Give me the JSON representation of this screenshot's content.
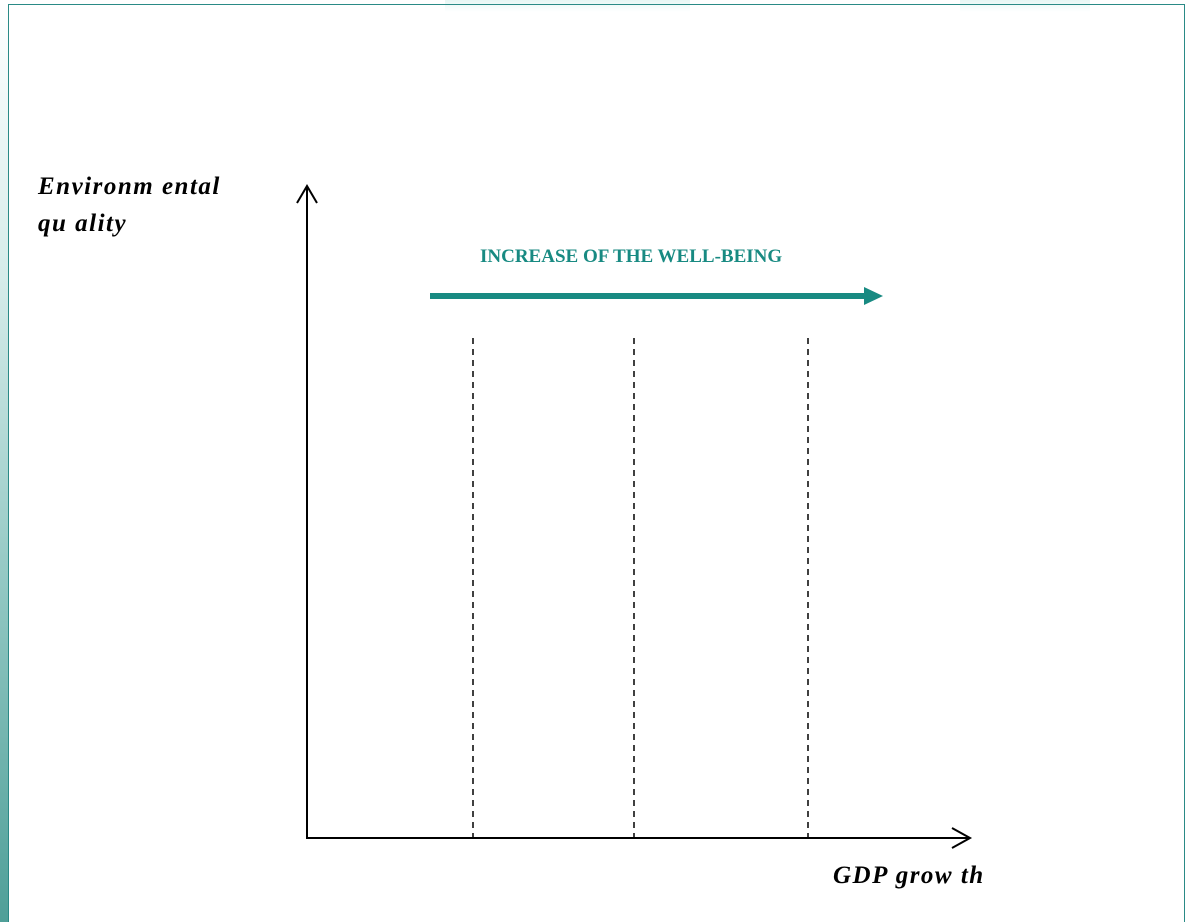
{
  "diagram": {
    "y_axis_label_line1": "Environm ental",
    "y_axis_label_line2": "qu ality",
    "x_axis_label": "GDP grow th",
    "arrow_label": "INCREASE OF THE WELL-BEING",
    "divider_count": 3
  },
  "colors": {
    "accent": "#188a82",
    "frame": "#2a8a86",
    "axis": "#000000"
  }
}
